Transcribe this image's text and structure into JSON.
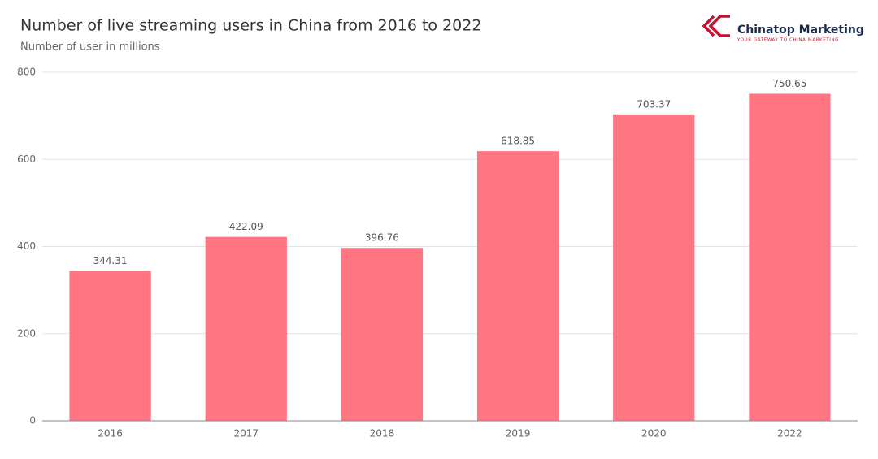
{
  "chart_data": {
    "type": "bar",
    "title": "Number of live streaming users in China from 2016 to 2022",
    "subtitle": "Number of user in millions",
    "categories": [
      "2016",
      "2017",
      "2018",
      "2019",
      "2020",
      "2022"
    ],
    "values": [
      344.31,
      422.09,
      396.76,
      618.85,
      703.37,
      750.65
    ],
    "color": "#ff7581",
    "ylim": [
      0,
      800
    ],
    "yticks": [
      0,
      200,
      400,
      600,
      800
    ],
    "grid": true
  },
  "logo": {
    "name": "Chinatop Marketing",
    "tagline": "YOUR GATEWAY TO CHINA MARKETING"
  }
}
